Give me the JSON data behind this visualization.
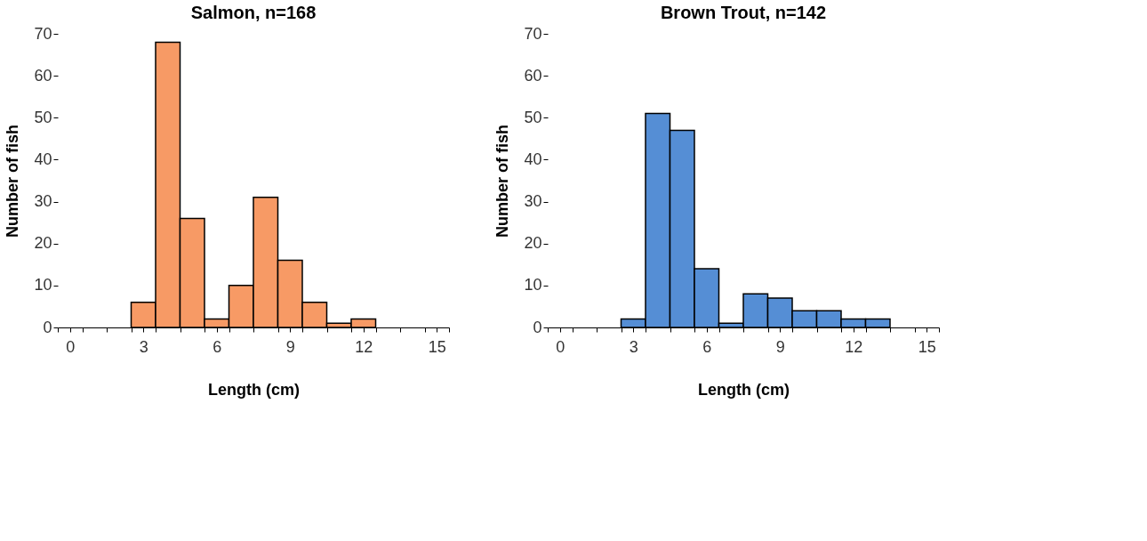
{
  "chart_data": [
    {
      "type": "histogram",
      "title": "Salmon, n=168",
      "xlabel": "Length (cm)",
      "ylabel": "Number of fish",
      "color": "#f79a65",
      "bins": [
        2.5,
        3.5,
        4.5,
        5.5,
        6.5,
        7.5,
        8.5,
        9.5,
        10.5,
        11.5,
        12.5
      ],
      "values": [
        6,
        68,
        26,
        2,
        10,
        31,
        16,
        6,
        1,
        2
      ],
      "xlim": [
        -0.5,
        15.5
      ],
      "xticks": [
        {
          "value": -0.5,
          "label": null
        },
        0,
        {
          "value": 0.5,
          "label": null
        },
        {
          "value": 1.5,
          "label": null
        },
        {
          "value": 2.5,
          "label": null
        },
        3,
        {
          "value": 3.5,
          "label": null
        },
        {
          "value": 4.5,
          "label": null
        },
        {
          "value": 5.5,
          "label": null
        },
        6,
        {
          "value": 6.5,
          "label": null
        },
        {
          "value": 7.5,
          "label": null
        },
        {
          "value": 8.5,
          "label": null
        },
        9,
        {
          "value": 9.5,
          "label": null
        },
        {
          "value": 10.5,
          "label": null
        },
        {
          "value": 11.5,
          "label": null
        },
        12,
        {
          "value": 12.5,
          "label": null
        },
        {
          "value": 13.5,
          "label": null
        },
        {
          "value": 14.5,
          "label": null
        },
        15,
        {
          "value": 15.5,
          "label": null
        }
      ],
      "ylim": [
        0,
        70
      ],
      "yticks": [
        0,
        10,
        20,
        30,
        40,
        50,
        60,
        70
      ],
      "grid": false
    },
    {
      "type": "histogram",
      "title": "Brown Trout, n=142",
      "xlabel": "Length (cm)",
      "ylabel": "Number of fish",
      "color": "#558ed5",
      "bins": [
        2.5,
        3.5,
        4.5,
        5.5,
        6.5,
        7.5,
        8.5,
        9.5,
        10.5,
        11.5,
        12.5,
        13.5
      ],
      "values": [
        2,
        51,
        47,
        14,
        1,
        8,
        7,
        4,
        4,
        2,
        2
      ],
      "xlim": [
        -0.5,
        15.5
      ],
      "xticks": [
        {
          "value": -0.5,
          "label": null
        },
        0,
        {
          "value": 0.5,
          "label": null
        },
        {
          "value": 1.5,
          "label": null
        },
        {
          "value": 2.5,
          "label": null
        },
        3,
        {
          "value": 3.5,
          "label": null
        },
        {
          "value": 4.5,
          "label": null
        },
        {
          "value": 5.5,
          "label": null
        },
        6,
        {
          "value": 6.5,
          "label": null
        },
        {
          "value": 7.5,
          "label": null
        },
        {
          "value": 8.5,
          "label": null
        },
        9,
        {
          "value": 9.5,
          "label": null
        },
        {
          "value": 10.5,
          "label": null
        },
        {
          "value": 11.5,
          "label": null
        },
        12,
        {
          "value": 12.5,
          "label": null
        },
        {
          "value": 13.5,
          "label": null
        },
        {
          "value": 14.5,
          "label": null
        },
        15,
        {
          "value": 15.5,
          "label": null
        }
      ],
      "ylim": [
        0,
        70
      ],
      "yticks": [
        0,
        10,
        20,
        30,
        40,
        50,
        60,
        70
      ],
      "grid": false
    }
  ]
}
